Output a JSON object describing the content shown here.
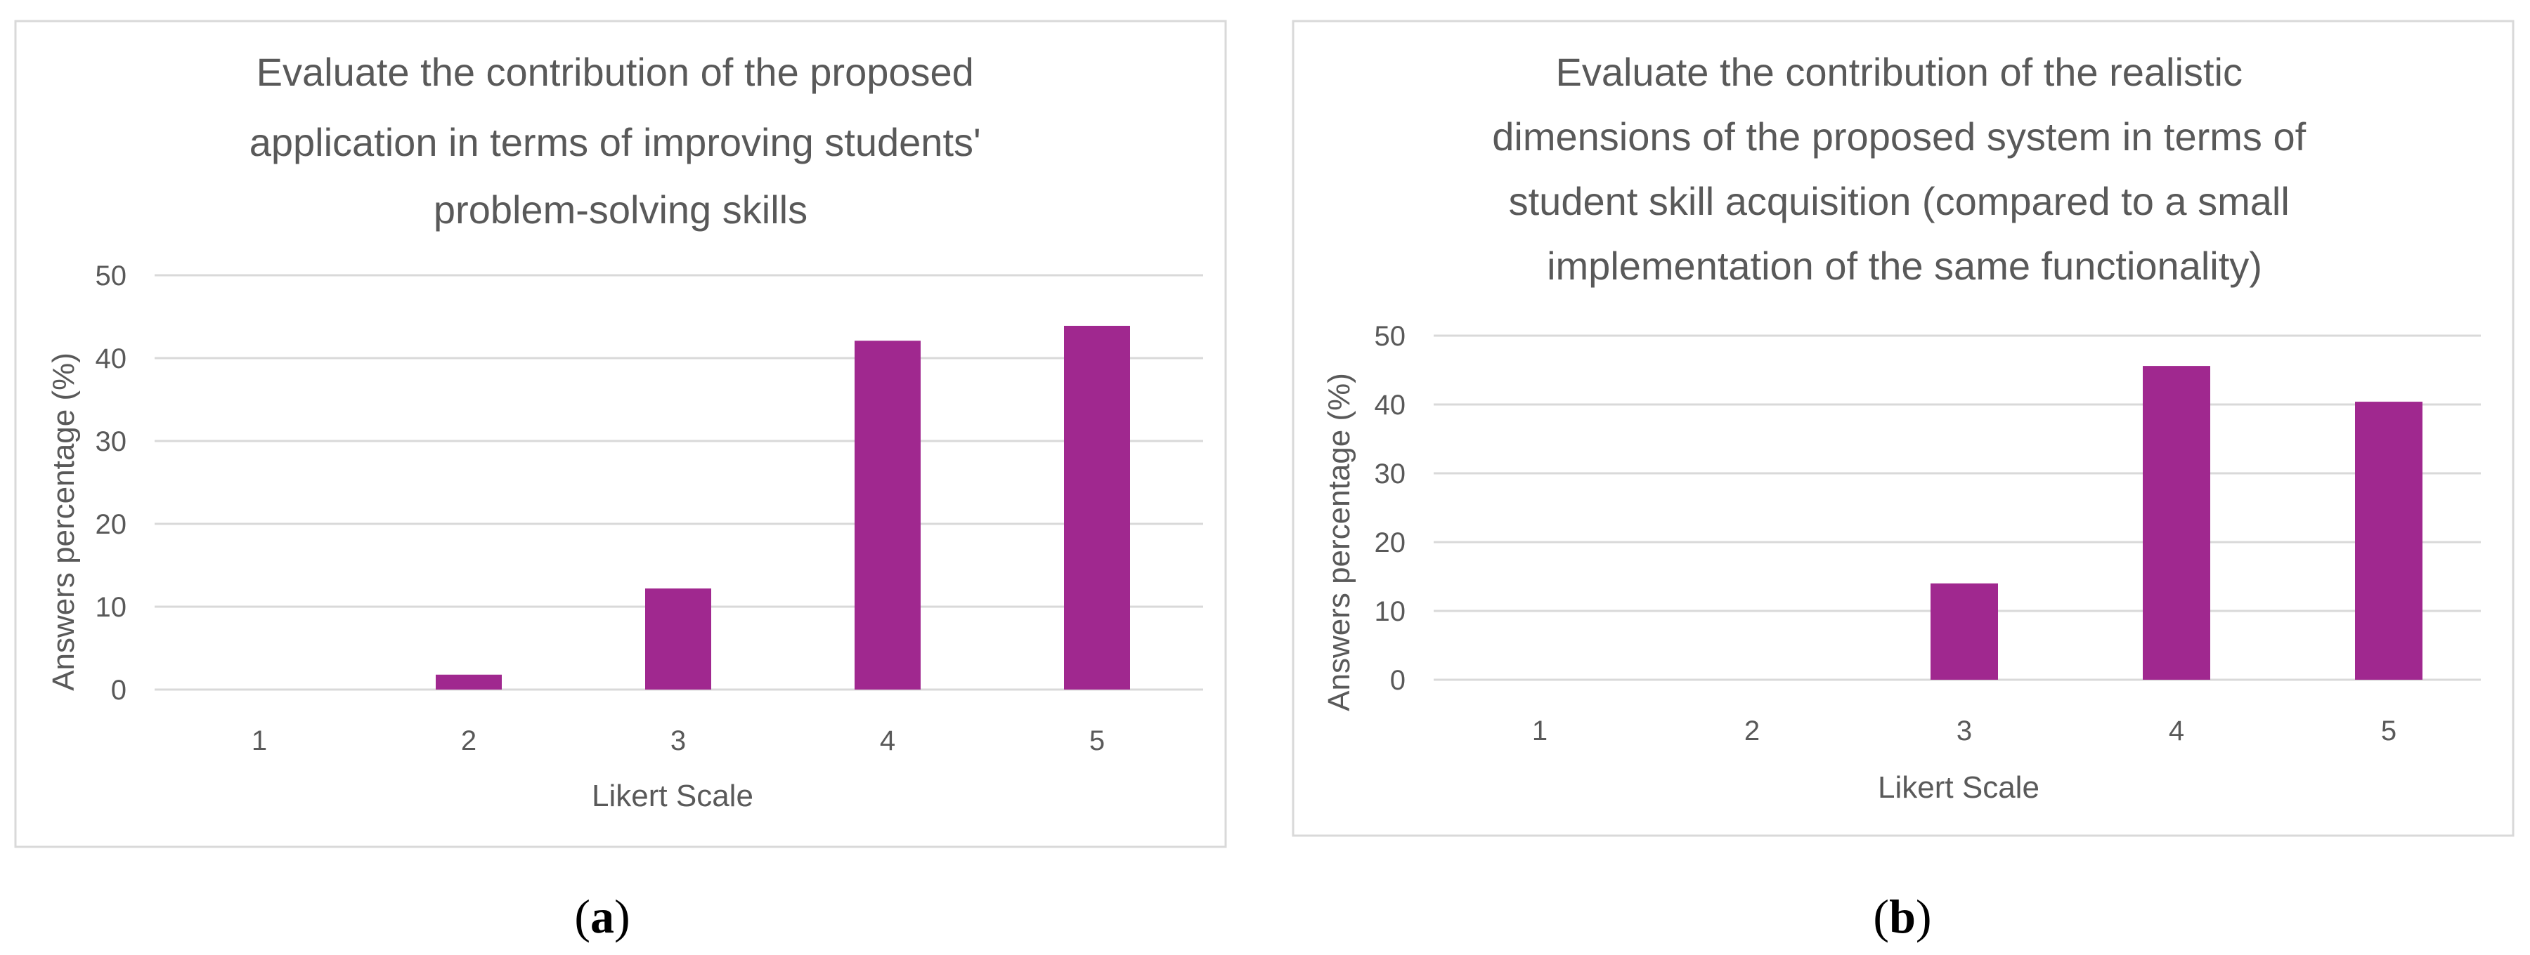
{
  "bar_color": "#A0288F",
  "chart_data": [
    {
      "type": "bar",
      "title_lines": [
        "Evaluate the contribution of the proposed",
        "application in terms of improving students'",
        "problem-solving skills"
      ],
      "xlabel": "Likert Scale",
      "ylabel": "Answers percentage (%)",
      "categories": [
        "1",
        "2",
        "3",
        "4",
        "5"
      ],
      "values": [
        0,
        1.8,
        12.2,
        42.1,
        43.9
      ],
      "ylim": [
        0,
        50
      ],
      "yticks": [
        "0",
        "10",
        "20",
        "30",
        "40",
        "50"
      ],
      "grid": true,
      "caption_open": "(",
      "caption_letter": "a",
      "caption_close": ")"
    },
    {
      "type": "bar",
      "title_lines": [
        "Evaluate the contribution of the realistic",
        "dimensions of the proposed system in terms of",
        "student skill acquisition (compared to a small",
        "implementation of the same functionality)"
      ],
      "xlabel": "Likert Scale",
      "ylabel": "Answers percentage (%)",
      "categories": [
        "1",
        "2",
        "3",
        "4",
        "5"
      ],
      "values": [
        0,
        0,
        14.0,
        45.6,
        40.4
      ],
      "ylim": [
        0,
        50
      ],
      "yticks": [
        "0",
        "10",
        "20",
        "30",
        "40",
        "50"
      ],
      "grid": true,
      "caption_open": "(",
      "caption_letter": "b",
      "caption_close": ")"
    }
  ]
}
